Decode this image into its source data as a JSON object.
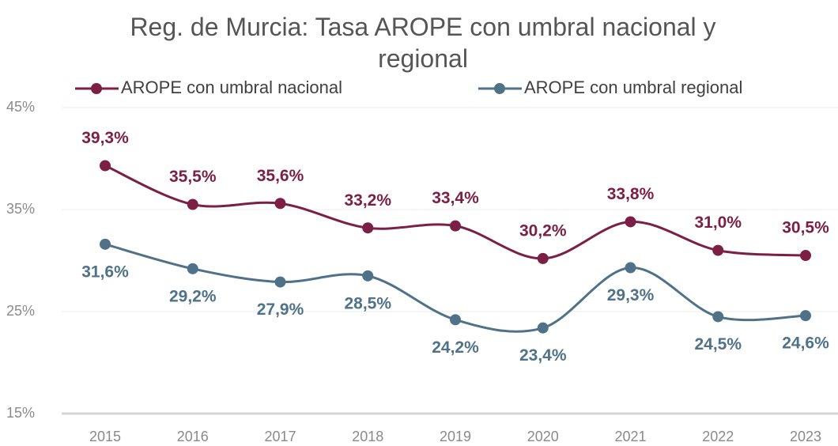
{
  "chart_data": {
    "type": "line",
    "title": "Reg. de Murcia: Tasa AROPE con umbral nacional y regional",
    "categories": [
      "2015",
      "2016",
      "2017",
      "2018",
      "2019",
      "2020",
      "2021",
      "2022",
      "2023"
    ],
    "series": [
      {
        "name": "AROPE con umbral nacional",
        "color": "#7b1f45",
        "values": [
          39.3,
          35.5,
          35.6,
          33.2,
          33.4,
          30.2,
          33.8,
          31.0,
          30.5
        ],
        "value_labels": [
          "39,3%",
          "35,5%",
          "35,6%",
          "33,2%",
          "33,4%",
          "30,2%",
          "33,8%",
          "31,0%",
          "30,5%"
        ]
      },
      {
        "name": "AROPE con umbral regional",
        "color": "#4f7288",
        "values": [
          31.6,
          29.2,
          27.9,
          28.5,
          24.2,
          23.4,
          29.3,
          24.5,
          24.6
        ],
        "value_labels": [
          "31,6%",
          "29,2%",
          "27,9%",
          "28,5%",
          "24,2%",
          "23,4%",
          "29,3%",
          "24,5%",
          "24,6%"
        ]
      }
    ],
    "ylim": [
      15,
      45
    ],
    "yticks": [
      {
        "value": 15,
        "label": "15%"
      },
      {
        "value": 25,
        "label": "25%"
      },
      {
        "value": 35,
        "label": "35%"
      },
      {
        "value": 45,
        "label": "45%"
      }
    ],
    "grid": true,
    "legend": "top",
    "smooth": true
  }
}
